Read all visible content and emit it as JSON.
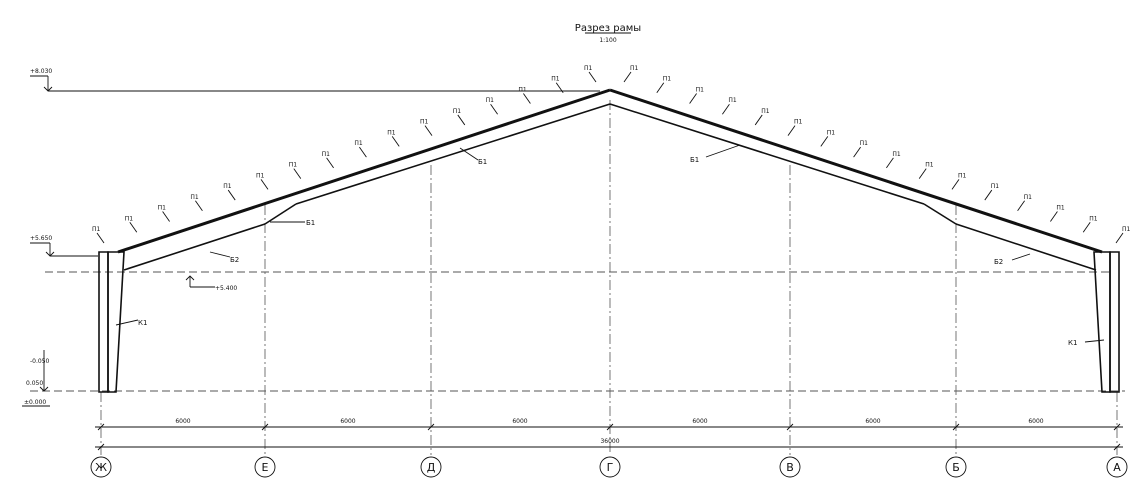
{
  "title": "Разрез рамы",
  "scale": "1:100",
  "levels": {
    "ridge": "+8.030",
    "eave": "+5.650",
    "under_truss": "+5.400",
    "zero": "±0.000",
    "ground": "-0.050",
    "base": "0.050"
  },
  "element_labels": {
    "left_column": "К1",
    "left_rafter_lower": "Б2",
    "left_rafter_upper": "Б1",
    "left_joint": "Б1",
    "right_rafter_upper": "Б1",
    "right_rafter_lower": "Б2",
    "right_column": "К1"
  },
  "purlin_marks": {
    "left": [
      "П1",
      "П1",
      "П1",
      "П1",
      "П1",
      "П1",
      "П1",
      "П1",
      "П1",
      "П1",
      "П1",
      "П1",
      "П1",
      "П1",
      "П1",
      "П1"
    ],
    "right": [
      "П1",
      "П1",
      "П1",
      "П1",
      "П1",
      "П1",
      "П1",
      "П1",
      "П1",
      "П1",
      "П1",
      "П1",
      "П1",
      "П1",
      "П1",
      "П1"
    ]
  },
  "dimensions": {
    "bays": [
      "6000",
      "6000",
      "6000",
      "6000",
      "6000",
      "6000"
    ],
    "total": "36000"
  },
  "axes": [
    "Ж",
    "Е",
    "Д",
    "Г",
    "В",
    "Б",
    "А"
  ]
}
